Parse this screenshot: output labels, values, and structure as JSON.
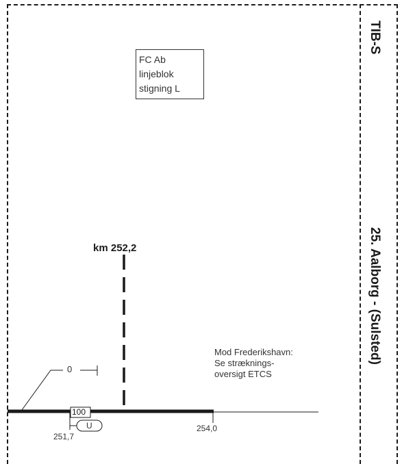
{
  "header": {
    "code": "TIB-S",
    "section": "25. Aalborg - (Sulsted)"
  },
  "fc_box": {
    "lines": [
      "FC Ab",
      "linjeblok",
      "stigning L"
    ]
  },
  "km_marker": {
    "label": "km 252,2"
  },
  "note": {
    "lines": [
      "Mod Frederikshavn:",
      "Se stræknings-",
      "oversigt ETCS"
    ]
  },
  "track": {
    "speed_sign": "100",
    "u_sign": "U",
    "zero_sign": "0",
    "km_start": "251,7",
    "km_end": "254,0"
  },
  "colors": {
    "line": "#1a1a1a",
    "text": "#333333"
  }
}
